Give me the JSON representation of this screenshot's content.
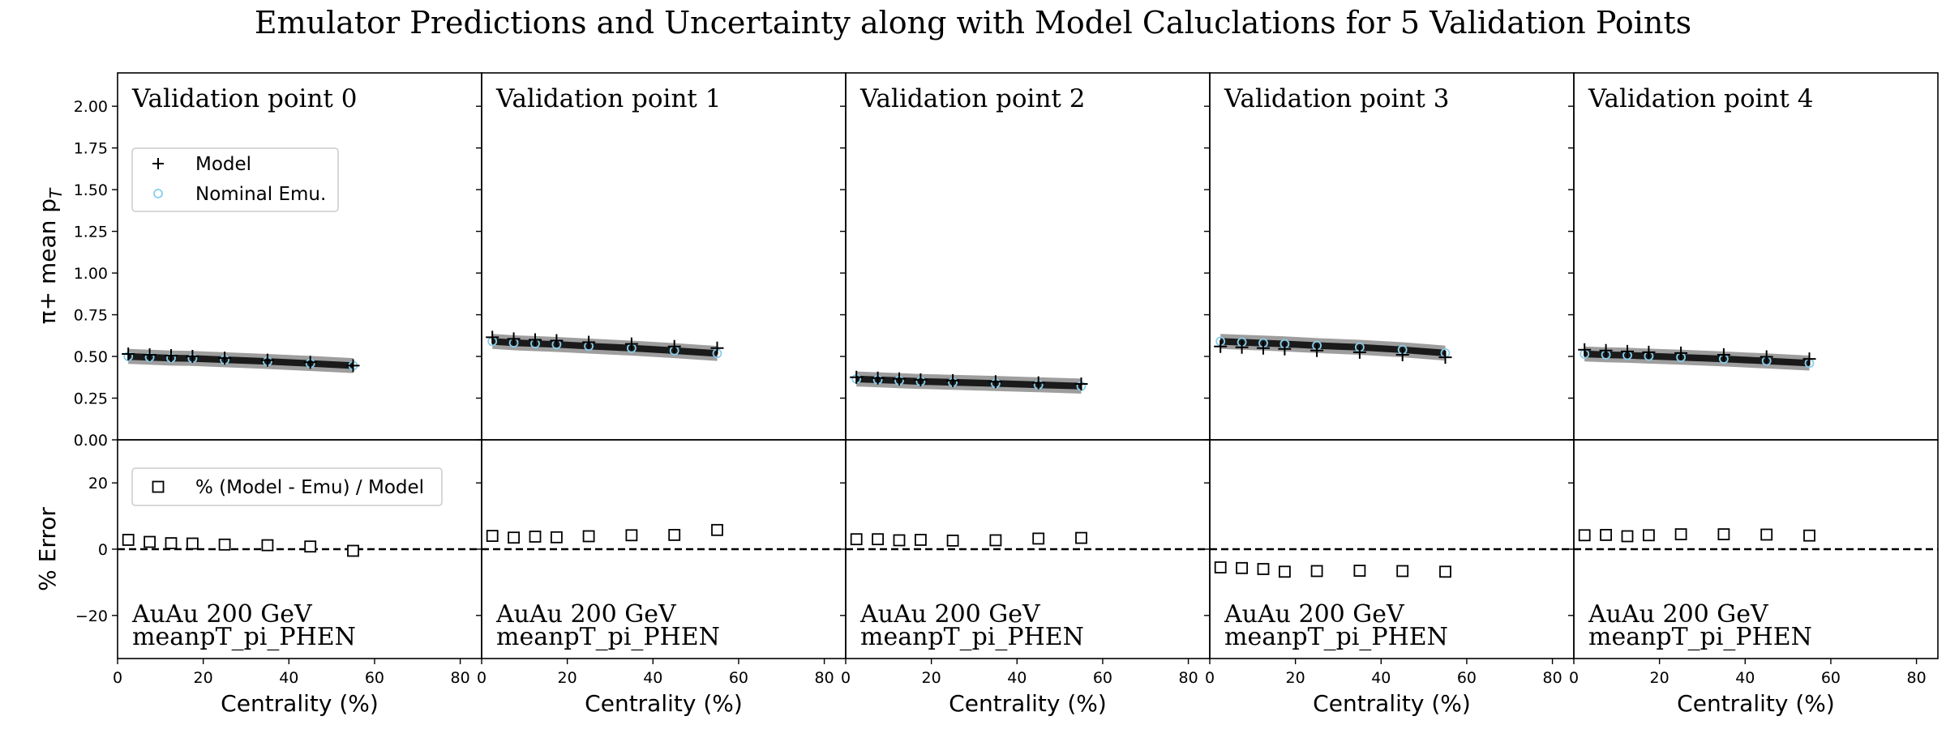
{
  "figure": {
    "title": "Emulator Predictions and Uncertainty along with Model Caluclations for 5 Validation Points"
  },
  "colors": {
    "model_marker": "#000000",
    "emulator_marker": "#87ceeb",
    "emulator_band_outer": "#9e9e9e",
    "emulator_band_inner": "#1a1a1a",
    "axes": "#000000",
    "background": "#ffffff"
  },
  "chart_data": {
    "type": "scatter",
    "title": "Emulator Predictions and Uncertainty along with Model Caluclations for 5 Validation Points",
    "xlabel": "Centrality (%)",
    "x_ticks": [
      0,
      20,
      40,
      60,
      80
    ],
    "xlim": [
      0,
      85
    ],
    "top_panel": {
      "ylabel": "π+ mean p_T",
      "ylabel_main": "π+ mean p",
      "ylabel_sub": "T",
      "ylim": [
        0,
        2.2
      ],
      "y_ticks": [
        "0.00",
        "0.25",
        "0.50",
        "0.75",
        "1.00",
        "1.25",
        "1.50",
        "1.75",
        "2.00"
      ],
      "legend": {
        "location": "upper-left",
        "entries": [
          "Model",
          "Nominal Emu."
        ]
      }
    },
    "bottom_panel": {
      "ylabel": "% Error",
      "ylim": [
        -33,
        33
      ],
      "y_ticks": [
        "−20",
        "0",
        "20"
      ],
      "y_tick_values": [
        -20,
        0,
        20
      ],
      "reference_line": 0,
      "legend": {
        "location": "upper-left",
        "entries": [
          "% (Model - Emu) / Model"
        ]
      }
    },
    "x": [
      2.5,
      7.5,
      12.5,
      17.5,
      25,
      35,
      45,
      55
    ],
    "panels": [
      {
        "title": "Validation point 0",
        "collision": "AuAu 200 GeV",
        "observable": "meanpT_pi_PHEN",
        "model": [
          0.515,
          0.51,
          0.505,
          0.5,
          0.49,
          0.478,
          0.465,
          0.445
        ],
        "emulator": [
          0.5,
          0.495,
          0.49,
          0.488,
          0.48,
          0.47,
          0.458,
          0.445
        ],
        "band_inner": 0.02,
        "band_outer": 0.045,
        "percent_error": [
          2.8,
          2.2,
          1.8,
          1.7,
          1.4,
          1.2,
          0.8,
          -0.5
        ]
      },
      {
        "title": "Validation point 1",
        "collision": "AuAu 200 GeV",
        "observable": "meanpT_pi_PHEN",
        "model": [
          0.615,
          0.605,
          0.6,
          0.595,
          0.585,
          0.575,
          0.56,
          0.55
        ],
        "emulator": [
          0.59,
          0.582,
          0.577,
          0.572,
          0.562,
          0.55,
          0.535,
          0.518
        ],
        "band_inner": 0.02,
        "band_outer": 0.045,
        "percent_error": [
          4.0,
          3.5,
          3.8,
          3.6,
          3.9,
          4.2,
          4.3,
          5.8
        ]
      },
      {
        "title": "Validation point 2",
        "collision": "AuAu 200 GeV",
        "observable": "meanpT_pi_PHEN",
        "model": [
          0.375,
          0.37,
          0.365,
          0.36,
          0.355,
          0.348,
          0.342,
          0.335
        ],
        "emulator": [
          0.365,
          0.36,
          0.355,
          0.35,
          0.345,
          0.338,
          0.33,
          0.322
        ],
        "band_inner": 0.02,
        "band_outer": 0.045,
        "percent_error": [
          3.0,
          3.0,
          2.7,
          2.8,
          2.6,
          2.7,
          3.2,
          3.4
        ]
      },
      {
        "title": "Validation point 3",
        "collision": "AuAu 200 GeV",
        "observable": "meanpT_pi_PHEN",
        "model": [
          0.56,
          0.555,
          0.55,
          0.545,
          0.535,
          0.525,
          0.51,
          0.495
        ],
        "emulator": [
          0.59,
          0.585,
          0.58,
          0.575,
          0.565,
          0.555,
          0.54,
          0.52
        ],
        "band_inner": 0.02,
        "band_outer": 0.045,
        "percent_error": [
          -5.5,
          -5.7,
          -6.0,
          -6.8,
          -6.6,
          -6.5,
          -6.6,
          -6.8
        ]
      },
      {
        "title": "Validation point 4",
        "collision": "AuAu 200 GeV",
        "observable": "meanpT_pi_PHEN",
        "model": [
          0.54,
          0.535,
          0.53,
          0.525,
          0.52,
          0.51,
          0.498,
          0.485
        ],
        "emulator": [
          0.515,
          0.51,
          0.507,
          0.502,
          0.495,
          0.485,
          0.473,
          0.46
        ],
        "band_inner": 0.02,
        "band_outer": 0.045,
        "percent_error": [
          4.2,
          4.3,
          3.9,
          4.2,
          4.5,
          4.5,
          4.4,
          4.1
        ]
      }
    ]
  }
}
